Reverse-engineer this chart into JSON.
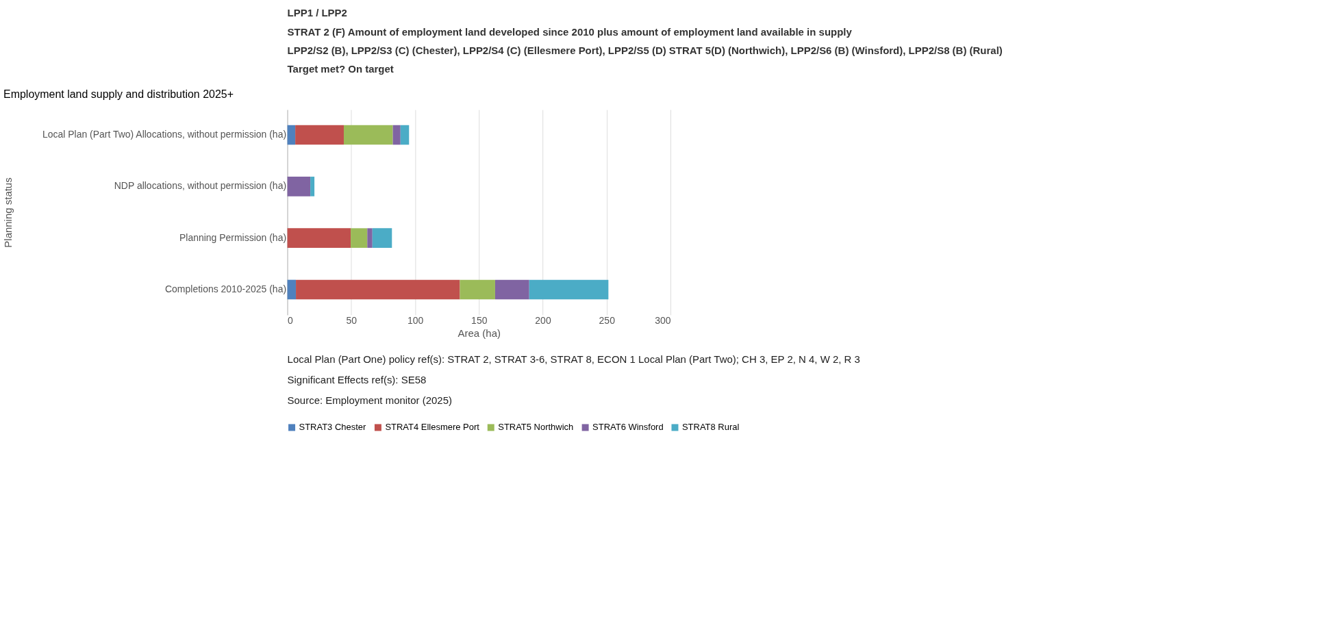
{
  "chart_data": {
    "type": "bar",
    "orientation": "horizontal",
    "stacked": true,
    "title": "Employment land supply and distribution 2025+",
    "xlabel": "Area (ha)",
    "ylabel": "Planning status",
    "categories": [
      "Local Plan (Part Two) Allocations, without permission (ha)",
      "NDP allocations, without permission (ha)",
      "Planning Permission (ha)",
      "Completions 2010-2025 (ha)"
    ],
    "series": [
      {
        "name": "STRAT3 Chester",
        "color": "#4f81bd",
        "values": [
          6.2,
          0,
          0,
          6.7
        ]
      },
      {
        "name": "STRAT4 Ellesmere Port",
        "color": "#c0504d",
        "values": [
          38,
          0,
          49.6,
          128.4
        ]
      },
      {
        "name": "STRAT5 Northwich",
        "color": "#9bbb59",
        "values": [
          38.4,
          0,
          13,
          27.6
        ]
      },
      {
        "name": "STRAT6 Winsford",
        "color": "#8064a2",
        "values": [
          6,
          18,
          4,
          26.7
        ]
      },
      {
        "name": "STRAT8 Rural",
        "color": "#4bacc6",
        "values": [
          6.7,
          3.2,
          15.3,
          62
        ]
      }
    ],
    "xlim": [
      0,
      300
    ],
    "xticks": [
      0,
      50,
      100,
      150,
      200,
      250,
      300
    ],
    "grid": "x",
    "legend": "bottom",
    "annotations": [
      "LPP1 / LPP2",
      "STRAT 2 (F) Amount of employment land developed since 2010 plus amount of employment land available in supply",
      "LPP2/S2 (B), LPP2/S3 (C) (Chester), LPP2/S4 (C) (Ellesmere Port), LPP2/S5 (D) STRAT 5(D) (Northwich), LPP2/S6 (B)  (Winsford), LPP2/S8 (B) (Rural)",
      "Target met? On target",
      "Local Plan (Part One) policy ref(s): STRAT 2, STRAT 3-6, STRAT 8, ECON 1 Local Plan (Part Two); CH 3, EP 2, N 4, W 2, R 3",
      "Significant Effects ref(s): SE58",
      "Source: Employment monitor (2025)"
    ]
  }
}
